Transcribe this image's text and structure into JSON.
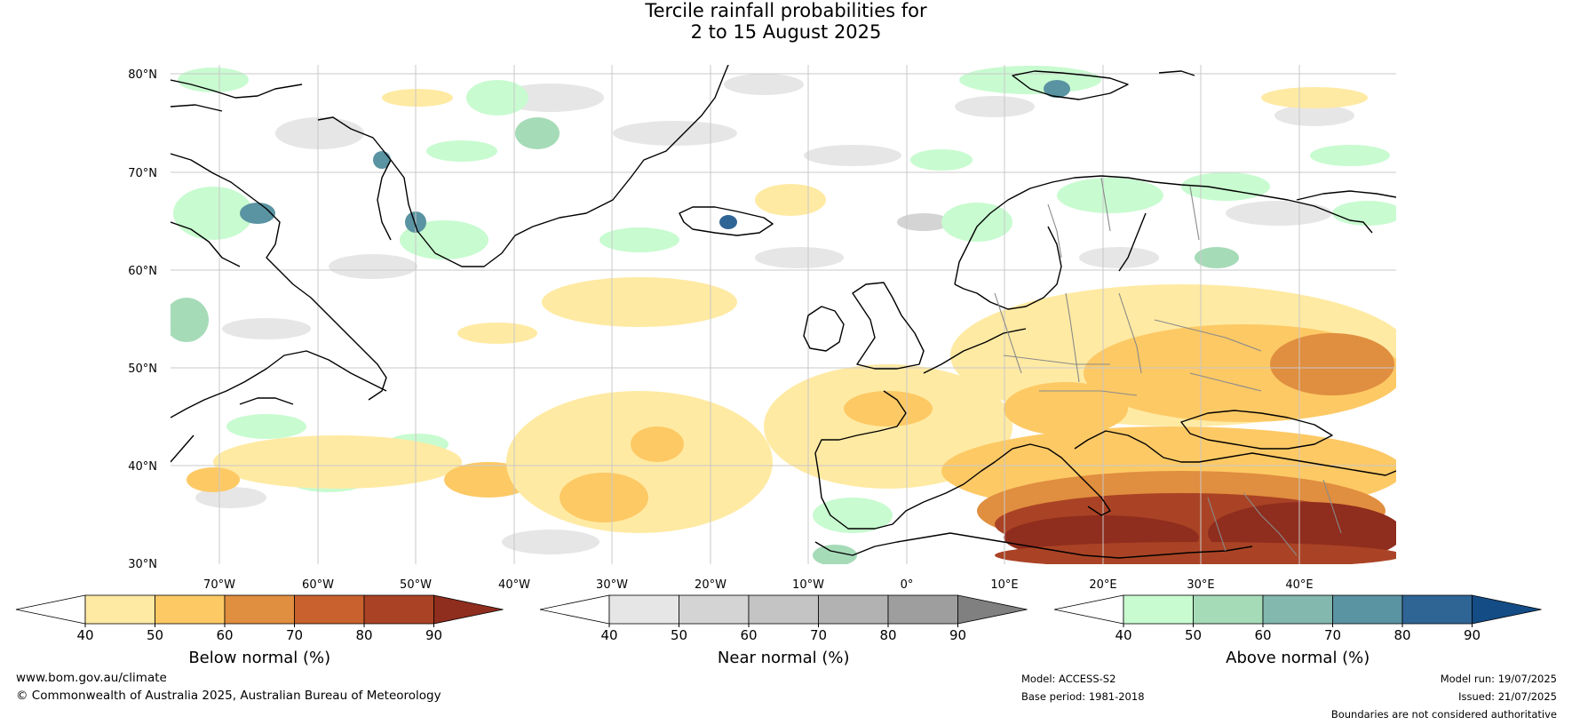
{
  "title": {
    "line1": "Tercile rainfall probabilities for",
    "line2": "2 to 15 August 2025"
  },
  "map": {
    "lat_labels": [
      "80°N",
      "70°N",
      "60°N",
      "50°N",
      "40°N",
      "30°N"
    ],
    "lon_labels": [
      "70°W",
      "60°W",
      "50°W",
      "40°W",
      "30°W",
      "20°W",
      "10°W",
      "0°",
      "10°E",
      "20°E",
      "30°E",
      "40°E"
    ],
    "colors": {
      "coast": "#000000",
      "border": "#8a8a8a",
      "grid": "#c8c8c8"
    }
  },
  "colorbars": [
    {
      "title": "Below normal (%)",
      "ticks": [
        "40",
        "50",
        "60",
        "70",
        "80",
        "90"
      ],
      "colors": [
        "#ffffff",
        "#ffeaa3",
        "#fdc965",
        "#e08e3f",
        "#c8612d",
        "#aa4325",
        "#8f2d1e"
      ]
    },
    {
      "title": "Near normal (%)",
      "ticks": [
        "40",
        "50",
        "60",
        "70",
        "80",
        "90"
      ],
      "colors": [
        "#ffffff",
        "#e6e6e6",
        "#d4d4d4",
        "#c4c4c4",
        "#b2b2b2",
        "#9e9e9e",
        "#808080"
      ]
    },
    {
      "title": "Above normal (%)",
      "ticks": [
        "40",
        "50",
        "60",
        "70",
        "80",
        "90"
      ],
      "colors": [
        "#ffffff",
        "#c8fbd0",
        "#a6dbb8",
        "#82b8ae",
        "#5a93a2",
        "#2f6595",
        "#144c85"
      ]
    }
  ],
  "footer": {
    "website": "www.bom.gov.au/climate",
    "copyright": "© Commonwealth of Australia 2025, Australian Bureau of Meteorology",
    "model": "Model: ACCESS-S2",
    "base_period": "Base period: 1981-2018",
    "model_run": "Model run: 19/07/2025",
    "issued": "Issued: 21/07/2025",
    "disclaimer": "Boundaries are not considered authoritative"
  }
}
